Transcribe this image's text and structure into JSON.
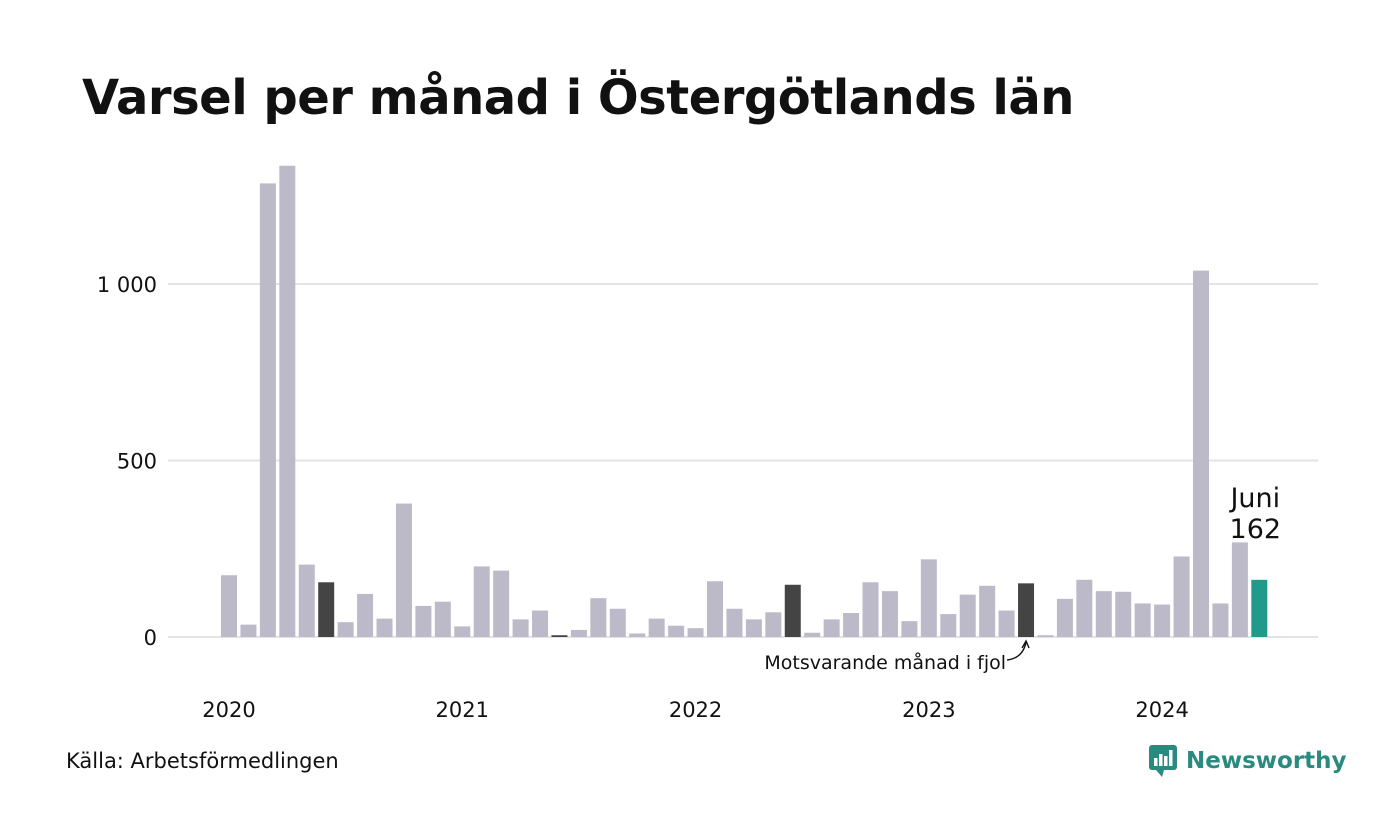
{
  "chart_data": {
    "type": "bar",
    "title": "Varsel per månad i Östergötlands län",
    "source": "Källa: Arbetsförmedlingen",
    "brand": "Newsworthy",
    "ylim": [
      0,
      1300
    ],
    "yticks": [
      0,
      500,
      1000
    ],
    "ytick_labels": [
      "0",
      "500",
      "1 000"
    ],
    "grid": "horizontal",
    "year_labels": [
      "2020",
      "2021",
      "2022",
      "2023",
      "2024"
    ],
    "x": [
      "2020-01",
      "2020-02",
      "2020-03",
      "2020-04",
      "2020-05",
      "2020-06",
      "2020-07",
      "2020-08",
      "2020-09",
      "2020-10",
      "2020-11",
      "2020-12",
      "2021-01",
      "2021-02",
      "2021-03",
      "2021-04",
      "2021-05",
      "2021-06",
      "2021-07",
      "2021-08",
      "2021-09",
      "2021-10",
      "2021-11",
      "2021-12",
      "2022-01",
      "2022-02",
      "2022-03",
      "2022-04",
      "2022-05",
      "2022-06",
      "2022-07",
      "2022-08",
      "2022-09",
      "2022-10",
      "2022-11",
      "2022-12",
      "2023-01",
      "2023-02",
      "2023-03",
      "2023-04",
      "2023-05",
      "2023-06",
      "2023-07",
      "2023-08",
      "2023-09",
      "2023-10",
      "2023-11",
      "2023-12",
      "2024-01",
      "2024-02",
      "2024-03",
      "2024-04",
      "2024-05",
      "2024-06"
    ],
    "values": [
      175,
      35,
      1285,
      1335,
      205,
      155,
      42,
      122,
      52,
      378,
      88,
      100,
      30,
      200,
      188,
      50,
      75,
      5,
      20,
      110,
      80,
      10,
      52,
      32,
      25,
      158,
      80,
      50,
      70,
      148,
      12,
      50,
      68,
      155,
      130,
      45,
      220,
      65,
      120,
      145,
      75,
      152,
      5,
      108,
      162,
      130,
      128,
      95,
      92,
      228,
      1038,
      95,
      268,
      162
    ],
    "highlight": {
      "same_month_last_years": [
        "2020-06",
        "2021-06",
        "2022-06",
        "2023-06"
      ],
      "current": "2024-06"
    },
    "annotations": {
      "comparison_label": "Motsvarande månad i fjol",
      "current_month": "Juni",
      "current_value": "162"
    },
    "colors": {
      "default": "#bcbac8",
      "same_month": "#444444",
      "current": "#1f9a8b",
      "grid": "#e3e3e8",
      "brand": "#2a8a80"
    }
  }
}
